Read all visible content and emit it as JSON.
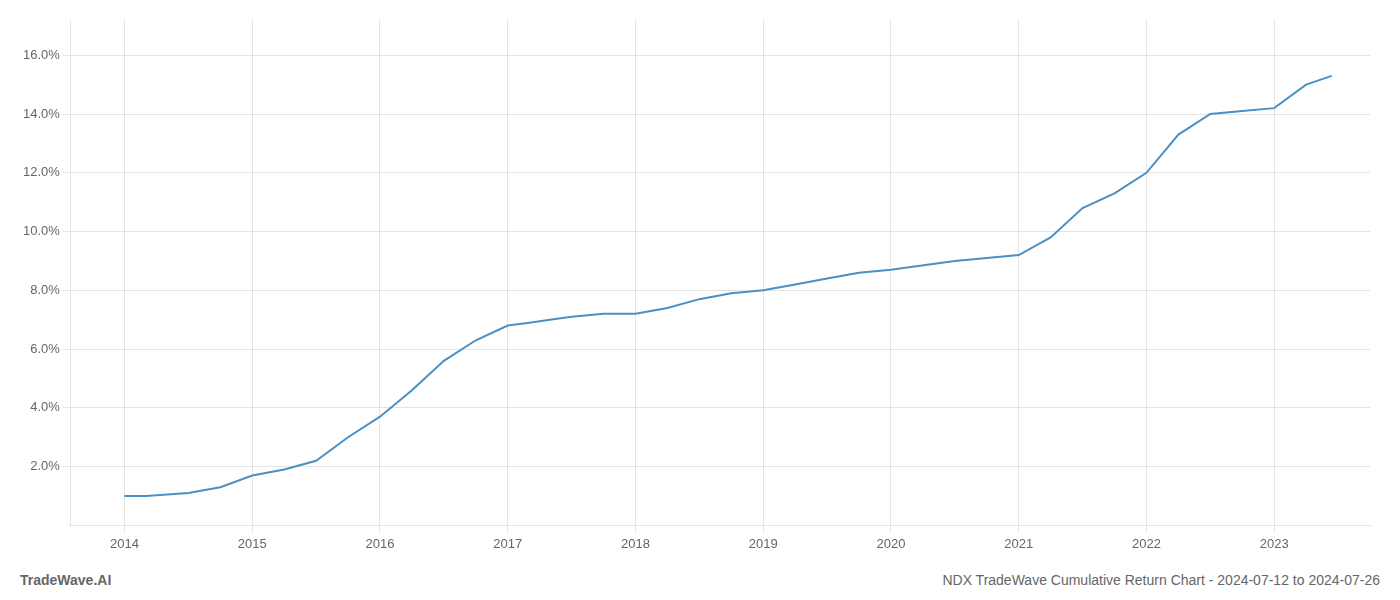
{
  "chart_data": {
    "type": "line",
    "x": [
      2014.0,
      2014.17,
      2014.5,
      2014.75,
      2015.0,
      2015.25,
      2015.5,
      2015.75,
      2016.0,
      2016.25,
      2016.5,
      2016.75,
      2017.0,
      2017.17,
      2017.33,
      2017.5,
      2017.75,
      2018.0,
      2018.25,
      2018.5,
      2018.75,
      2019.0,
      2019.25,
      2019.5,
      2019.75,
      2020.0,
      2020.17,
      2020.5,
      2020.75,
      2021.0,
      2021.25,
      2021.5,
      2021.75,
      2022.0,
      2022.25,
      2022.5,
      2022.75,
      2023.0,
      2023.25,
      2023.45
    ],
    "values": [
      0.01,
      0.01,
      0.011,
      0.013,
      0.017,
      0.019,
      0.022,
      0.03,
      0.037,
      0.046,
      0.056,
      0.063,
      0.068,
      0.069,
      0.07,
      0.071,
      0.072,
      0.072,
      0.074,
      0.077,
      0.079,
      0.08,
      0.082,
      0.084,
      0.086,
      0.087,
      0.088,
      0.09,
      0.091,
      0.092,
      0.098,
      0.108,
      0.113,
      0.12,
      0.133,
      0.14,
      0.141,
      0.142,
      0.15,
      0.153
    ],
    "color": "#4a90c4",
    "xlim": [
      2013.58,
      2023.75
    ],
    "ylim": [
      0.0,
      0.172
    ],
    "xticks": [
      2014,
      2015,
      2016,
      2017,
      2018,
      2019,
      2020,
      2021,
      2022,
      2023
    ],
    "yticks": [
      {
        "value": 0.02,
        "label": "2.0%"
      },
      {
        "value": 0.04,
        "label": "4.0%"
      },
      {
        "value": 0.06,
        "label": "6.0%"
      },
      {
        "value": 0.08,
        "label": "8.0%"
      },
      {
        "value": 0.1,
        "label": "10.0%"
      },
      {
        "value": 0.12,
        "label": "12.0%"
      },
      {
        "value": 0.14,
        "label": "14.0%"
      },
      {
        "value": 0.16,
        "label": "16.0%"
      }
    ],
    "grid": true,
    "annotations": [
      "TradeWave.AI",
      "NDX TradeWave Cumulative Return Chart - 2024-07-12 to 2024-07-26"
    ]
  }
}
